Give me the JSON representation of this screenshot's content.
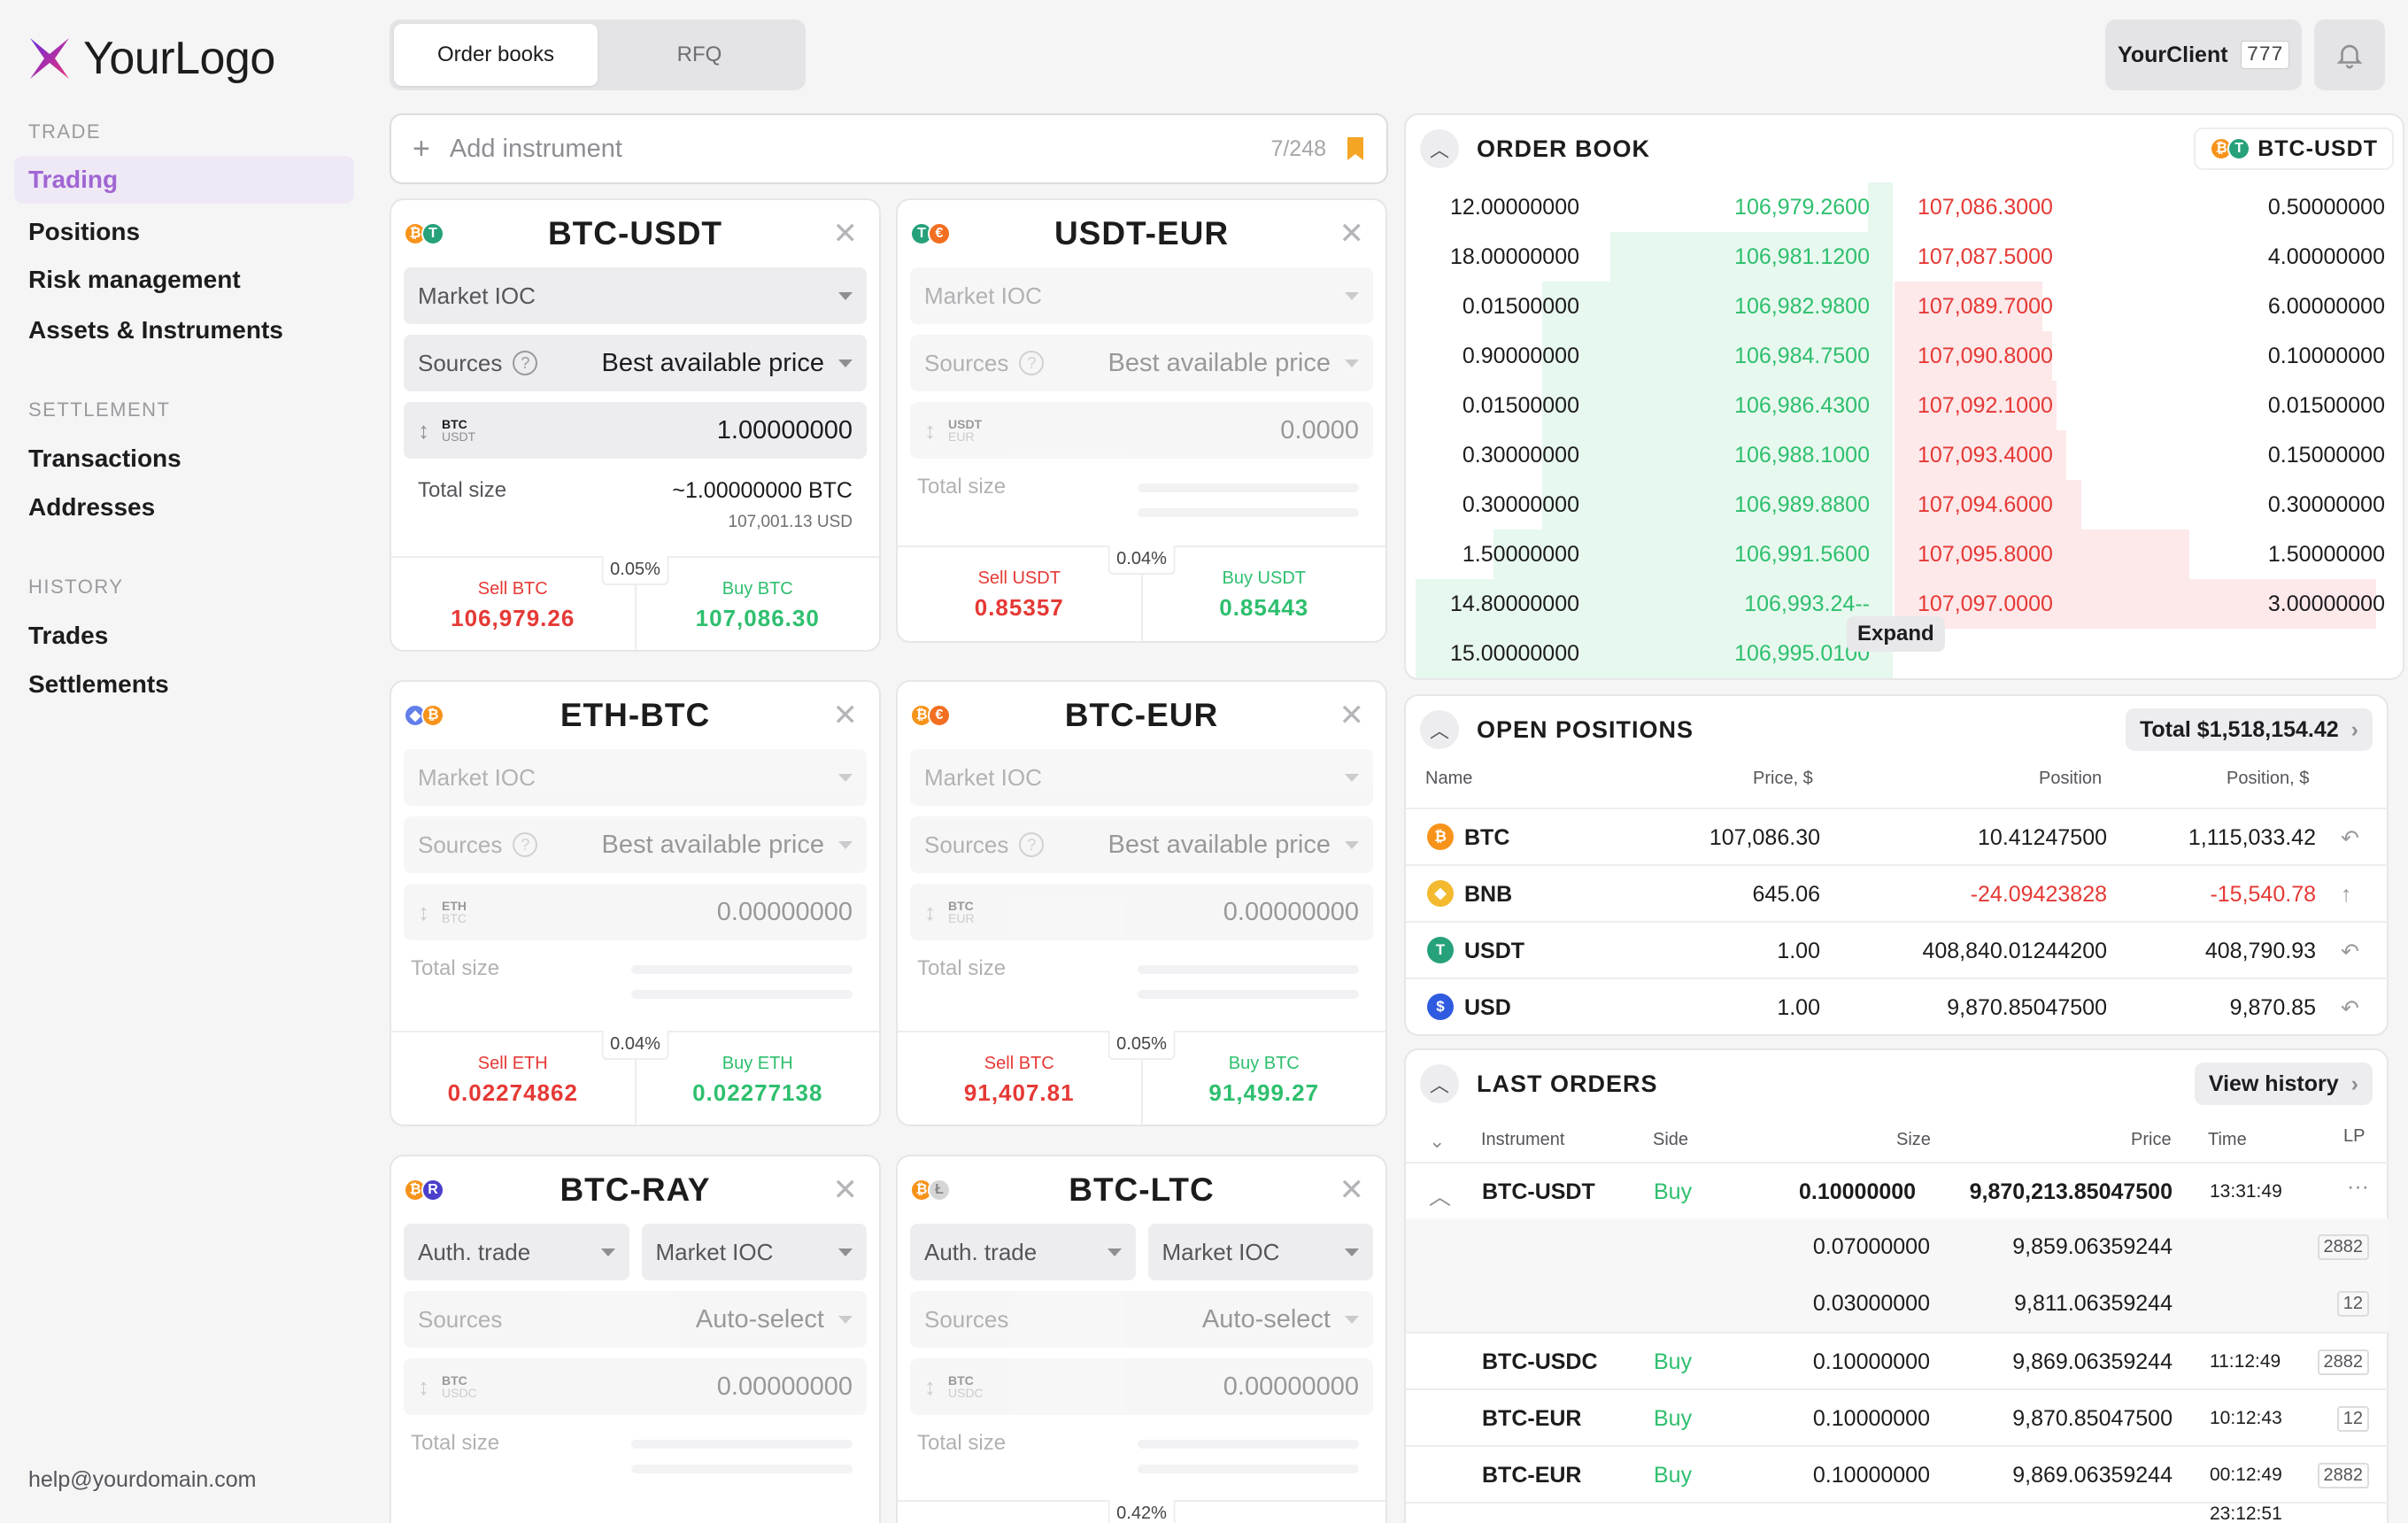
{
  "brand": {
    "name": "YourLogo",
    "accent": "#a066d3"
  },
  "sidebar": {
    "trade_heading": "TRADE",
    "trade_items": [
      "Trading",
      "Positions",
      "Risk management",
      "Assets & Instruments"
    ],
    "settlement_heading": "SETTLEMENT",
    "settlement_items": [
      "Transactions",
      "Addresses"
    ],
    "history_heading": "HISTORY",
    "history_items": [
      "Trades",
      "Settlements"
    ],
    "help_email": "help@yourdomain.com"
  },
  "top": {
    "tabs": [
      "Order books",
      "RFQ"
    ],
    "client_name": "YourClient",
    "client_id": "777"
  },
  "add_instrument": {
    "label": "Add instrument",
    "count": "7/248"
  },
  "tickets": [
    {
      "pair": "BTC-USDT",
      "order_type": "Market IOC",
      "sources_label": "Sources",
      "sources_value": "Best available price",
      "base": "BTC",
      "quote": "USDT",
      "amount": "1.00000000",
      "total_label": "Total size",
      "total_main": "~1.00000000 BTC",
      "total_sub": "107,001.13 USD",
      "sell_label": "Sell BTC",
      "sell_price": "106,979.26",
      "buy_label": "Buy BTC",
      "buy_price": "107,086.30",
      "spread": "0.05%"
    },
    {
      "pair": "USDT-EUR",
      "order_type": "Market IOC",
      "sources_label": "Sources",
      "sources_value": "Best available price",
      "base": "USDT",
      "quote": "EUR",
      "amount": "0.0000",
      "total_label": "Total size",
      "sell_label": "Sell USDT",
      "sell_price": "0.85357",
      "buy_label": "Buy USDT",
      "buy_price": "0.85443",
      "spread": "0.04%"
    },
    {
      "pair": "ETH-BTC",
      "order_type": "Market IOC",
      "sources_label": "Sources",
      "sources_value": "Best available price",
      "base": "ETH",
      "quote": "BTC",
      "amount": "0.00000000",
      "total_label": "Total size",
      "sell_label": "Sell ETH",
      "sell_price": "0.02274862",
      "buy_label": "Buy ETH",
      "buy_price": "0.02277138",
      "spread": "0.04%"
    },
    {
      "pair": "BTC-EUR",
      "order_type": "Market IOC",
      "sources_label": "Sources",
      "sources_value": "Best available price",
      "base": "BTC",
      "quote": "EUR",
      "amount": "0.00000000",
      "total_label": "Total size",
      "sell_label": "Sell BTC",
      "sell_price": "91,407.81",
      "buy_label": "Buy BTC",
      "buy_price": "91,499.27",
      "spread": "0.05%"
    },
    {
      "pair": "BTC-RAY",
      "trade_type": "Auth. trade",
      "order_type": "Market IOC",
      "sources_label": "Sources",
      "sources_value": "Auto-select",
      "base": "BTC",
      "quote": "USDC",
      "amount": "0.00000000",
      "total_label": "Total size"
    },
    {
      "pair": "BTC-LTC",
      "trade_type": "Auth. trade",
      "order_type": "Market IOC",
      "sources_label": "Sources",
      "sources_value": "Auto-select",
      "base": "BTC",
      "quote": "USDC",
      "amount": "0.00000000",
      "total_label": "Total size",
      "spread": "0.42%"
    }
  ],
  "order_book": {
    "title": "ORDER BOOK",
    "pair": "BTC-USDT",
    "expand_label": "Expand",
    "rows": [
      {
        "bid_qty": "12.00000000",
        "bid": "106,979.2600",
        "ask": "107,086.3000",
        "ask_qty": "0.50000000",
        "bid_depth": 0.05,
        "ask_depth": 0.0
      },
      {
        "bid_qty": "18.00000000",
        "bid": "106,981.1200",
        "ask": "107,087.5000",
        "ask_qty": "4.00000000",
        "bid_depth": 0.58,
        "ask_depth": 0.0
      },
      {
        "bid_qty": "0.01500000",
        "bid": "106,982.9800",
        "ask": "107,089.7000",
        "ask_qty": "6.00000000",
        "bid_depth": 0.72,
        "ask_depth": 0.3
      },
      {
        "bid_qty": "0.90000000",
        "bid": "106,984.7500",
        "ask": "107,090.8000",
        "ask_qty": "0.10000000",
        "bid_depth": 0.72,
        "ask_depth": 0.32
      },
      {
        "bid_qty": "0.01500000",
        "bid": "106,986.4300",
        "ask": "107,092.1000",
        "ask_qty": "0.01500000",
        "bid_depth": 0.72,
        "ask_depth": 0.33
      },
      {
        "bid_qty": "0.30000000",
        "bid": "106,988.1000",
        "ask": "107,093.4000",
        "ask_qty": "0.15000000",
        "bid_depth": 0.72,
        "ask_depth": 0.35
      },
      {
        "bid_qty": "0.30000000",
        "bid": "106,989.8800",
        "ask": "107,094.6000",
        "ask_qty": "0.30000000",
        "bid_depth": 0.72,
        "ask_depth": 0.38
      },
      {
        "bid_qty": "1.50000000",
        "bid": "106,991.5600",
        "ask": "107,095.8000",
        "ask_qty": "1.50000000",
        "bid_depth": 0.82,
        "ask_depth": 0.6
      },
      {
        "bid_qty": "14.80000000",
        "bid": "106,993.24--",
        "ask": "107,097.0000",
        "ask_qty": "3.00000000",
        "bid_depth": 0.98,
        "ask_depth": 0.98
      },
      {
        "bid_qty": "15.00000000",
        "bid": "106,995.0100",
        "ask": "",
        "ask_qty": "",
        "bid_depth": 0.98,
        "ask_depth": 0.0
      }
    ]
  },
  "open_positions": {
    "title": "OPEN POSITIONS",
    "total": "Total $1,518,154.42",
    "headers": [
      "Name",
      "Price, $",
      "Position",
      "Position, $"
    ],
    "rows": [
      {
        "icon": "btc-icon",
        "symbol": "₿",
        "color": "#f7931a",
        "name": "BTC",
        "price": "107,086.30",
        "position": "10.41247500",
        "position_usd": "1,115,033.42",
        "negative": false,
        "action": "return-icon",
        "action_glyph": "↶"
      },
      {
        "icon": "bnb-icon",
        "symbol": "◆",
        "color": "#f3ba2f",
        "name": "BNB",
        "price": "645.06",
        "position": "-24.09423828",
        "position_usd": "-15,540.78",
        "negative": true,
        "action": "arrow-up-icon",
        "action_glyph": "↑"
      },
      {
        "icon": "usdt-icon",
        "symbol": "T",
        "color": "#26a17b",
        "name": "USDT",
        "price": "1.00",
        "position": "408,840.01244200",
        "position_usd": "408,790.93",
        "negative": false,
        "action": "return-icon",
        "action_glyph": "↶"
      },
      {
        "icon": "usd-icon",
        "symbol": "$",
        "color": "#2f5be0",
        "name": "USD",
        "price": "1.00",
        "position": "9,870.85047500",
        "position_usd": "9,870.85",
        "negative": false,
        "action": "return-icon",
        "action_glyph": "↶"
      }
    ]
  },
  "last_orders": {
    "title": "LAST ORDERS",
    "view_history": "View history",
    "headers": [
      "Instrument",
      "Side",
      "Size",
      "Price",
      "Time",
      "LP"
    ],
    "rows": [
      {
        "instrument": "BTC-USDT",
        "side": "Buy",
        "size": "0.10000000",
        "price": "9,870,213.85047500",
        "time": "13:31:49",
        "lp": "···",
        "expanded": true
      },
      {
        "instrument": "",
        "side": "",
        "size": "0.07000000",
        "price": "9,859.06359244",
        "time": "",
        "lp": "2882"
      },
      {
        "instrument": "",
        "side": "",
        "size": "0.03000000",
        "price": "9,811.06359244",
        "time": "",
        "lp": "12"
      },
      {
        "instrument": "BTC-USDC",
        "side": "Buy",
        "size": "0.10000000",
        "price": "9,869.06359244",
        "time": "11:12:49",
        "lp": "2882"
      },
      {
        "instrument": "BTC-EUR",
        "side": "Buy",
        "size": "0.10000000",
        "price": "9,870.85047500",
        "time": "10:12:43",
        "lp": "12"
      },
      {
        "instrument": "BTC-EUR",
        "side": "Buy",
        "size": "0.10000000",
        "price": "9,869.06359244",
        "time": "00:12:49",
        "lp": "2882"
      },
      {
        "instrument": "",
        "side": "",
        "size": "",
        "price": "",
        "time": "23:12:51",
        "lp": ""
      }
    ]
  }
}
